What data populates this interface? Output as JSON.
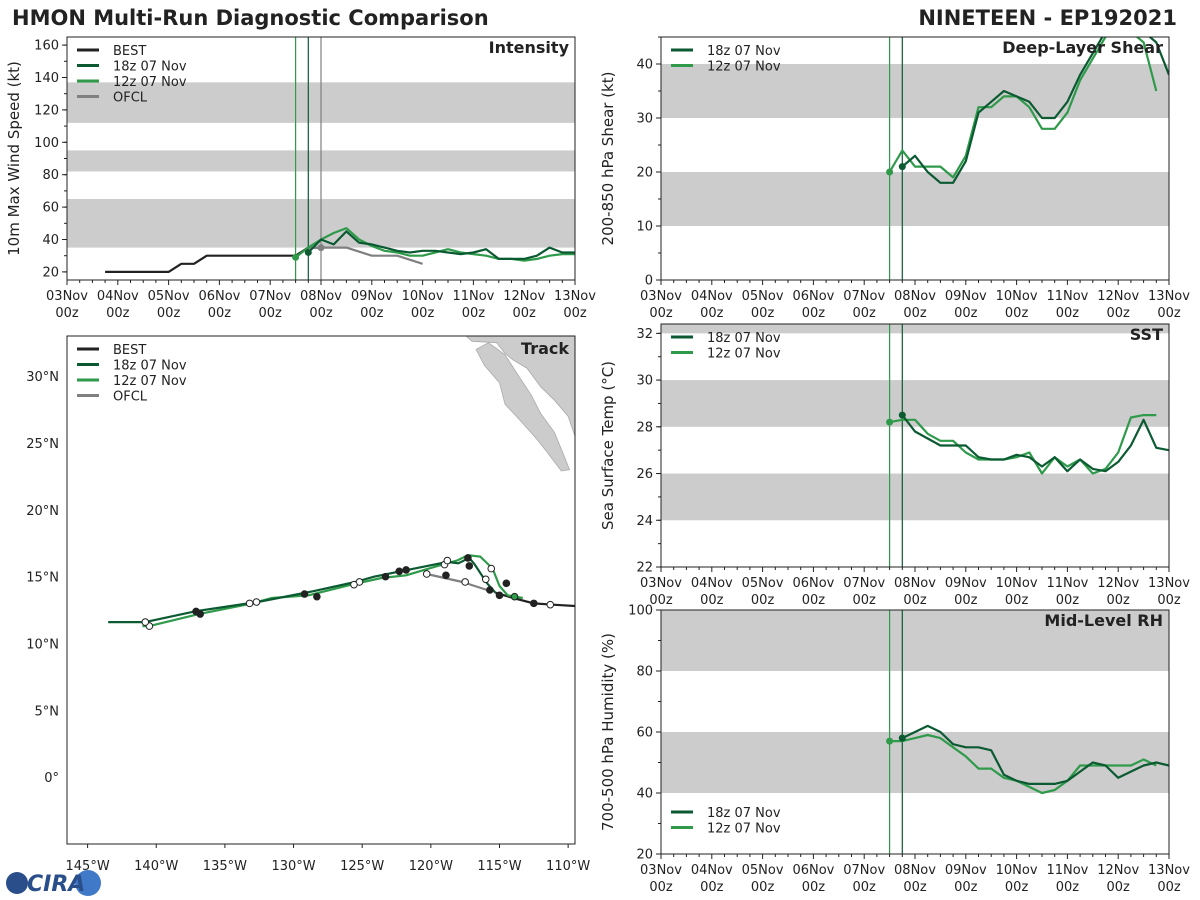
{
  "header": {
    "left_title": "HMON Multi-Run Diagnostic Comparison",
    "right_title": "NINETEEN - EP192021"
  },
  "logo_text": "CIRA",
  "colors": {
    "best": "#222222",
    "run18": "#0b5a32",
    "run12": "#2e9a4a",
    "ofcl": "#808080",
    "band": "#cccccc"
  },
  "time_ticks": [
    [
      "03Nov",
      "00z"
    ],
    [
      "04Nov",
      "00z"
    ],
    [
      "05Nov",
      "00z"
    ],
    [
      "06Nov",
      "00z"
    ],
    [
      "07Nov",
      "00z"
    ],
    [
      "08Nov",
      "00z"
    ],
    [
      "09Nov",
      "00z"
    ],
    [
      "10Nov",
      "00z"
    ],
    [
      "11Nov",
      "00z"
    ],
    [
      "12Nov",
      "00z"
    ],
    [
      "13Nov",
      "00z"
    ]
  ],
  "chart_data": [
    {
      "id": "intensity",
      "type": "line",
      "title": "Intensity",
      "ylabel": "10m Max Wind Speed (kt)",
      "xlim_days": [
        0,
        10
      ],
      "ylim": [
        15,
        165
      ],
      "yticks": [
        20,
        40,
        60,
        80,
        100,
        120,
        140,
        160
      ],
      "bands": [
        [
          35,
          65
        ],
        [
          82,
          95
        ],
        [
          112,
          137
        ]
      ],
      "vlines": [
        {
          "x": 4.5,
          "color": "run12"
        },
        {
          "x": 4.75,
          "color": "run18"
        },
        {
          "x": 5.0,
          "color": "ofcl"
        }
      ],
      "legend": [
        "BEST",
        "18z 07 Nov",
        "12z 07 Nov",
        "OFCL"
      ],
      "series": [
        {
          "name": "BEST",
          "color": "best",
          "x": [
            0.75,
            1.0,
            1.25,
            1.5,
            1.75,
            2.0,
            2.25,
            2.5,
            2.75,
            3.0,
            3.25,
            3.5,
            3.75,
            4.0,
            4.25,
            4.5,
            4.75,
            5.0
          ],
          "values": [
            20,
            20,
            20,
            20,
            20,
            20,
            25,
            25,
            30,
            30,
            30,
            30,
            30,
            30,
            30,
            30,
            35,
            35
          ]
        },
        {
          "name": "OFCL",
          "color": "ofcl",
          "x": [
            4.75,
            5.0,
            5.5,
            6.0,
            6.5,
            7.0
          ],
          "values": [
            35,
            35,
            35,
            30,
            30,
            25
          ]
        },
        {
          "name": "12z 07 Nov",
          "color": "run12",
          "x": [
            4.5,
            4.75,
            5.0,
            5.25,
            5.5,
            5.75,
            6.0,
            6.25,
            6.5,
            6.75,
            7.0,
            7.25,
            7.5,
            7.75,
            8.0,
            8.25,
            8.5,
            8.75,
            9.0,
            9.25,
            9.5,
            9.75,
            10.0
          ],
          "values": [
            29,
            35,
            40,
            44,
            47,
            40,
            36,
            33,
            32,
            30,
            30,
            32,
            34,
            32,
            31,
            30,
            28,
            28,
            27,
            28,
            30,
            31,
            31
          ]
        },
        {
          "name": "18z 07 Nov",
          "color": "run18",
          "x": [
            4.75,
            5.0,
            5.25,
            5.5,
            5.75,
            6.0,
            6.25,
            6.5,
            6.75,
            7.0,
            7.25,
            7.5,
            7.75,
            8.0,
            8.25,
            8.5,
            8.75,
            9.0,
            9.25,
            9.5,
            9.75,
            10.0
          ],
          "values": [
            32,
            40,
            37,
            45,
            38,
            37,
            35,
            33,
            32,
            33,
            33,
            32,
            31,
            32,
            34,
            28,
            28,
            28,
            30,
            35,
            32,
            32
          ]
        }
      ],
      "dots": [
        {
          "x": 4.5,
          "y": 29,
          "color": "run12"
        },
        {
          "x": 4.75,
          "y": 32,
          "color": "run18"
        },
        {
          "x": 5.0,
          "y": 35,
          "color": "ofcl"
        }
      ]
    },
    {
      "id": "shear",
      "type": "line",
      "title": "Deep-Layer Shear",
      "ylabel": "200-850 hPa Shear (kt)",
      "xlim_days": [
        0,
        10
      ],
      "ylim": [
        0,
        45
      ],
      "yticks": [
        0,
        10,
        20,
        30,
        40
      ],
      "bands": [
        [
          10,
          20
        ],
        [
          30,
          40
        ]
      ],
      "vlines": [
        {
          "x": 4.5,
          "color": "run12"
        },
        {
          "x": 4.75,
          "color": "run18"
        }
      ],
      "legend": [
        "18z 07 Nov",
        "12z 07 Nov"
      ],
      "series": [
        {
          "name": "12z 07 Nov",
          "color": "run12",
          "x": [
            4.5,
            4.75,
            5.0,
            5.25,
            5.5,
            5.75,
            6.0,
            6.25,
            6.5,
            6.75,
            7.0,
            7.25,
            7.5,
            7.75,
            8.0,
            8.25,
            8.5,
            8.75,
            9.0,
            9.25,
            9.5,
            9.75
          ],
          "values": [
            20,
            24,
            21,
            21,
            21,
            19,
            23,
            32,
            32,
            34,
            34,
            32,
            28,
            28,
            31,
            37,
            41,
            45,
            48,
            46,
            44,
            35
          ]
        },
        {
          "name": "18z 07 Nov",
          "color": "run18",
          "x": [
            4.75,
            5.0,
            5.25,
            5.5,
            5.75,
            6.0,
            6.25,
            6.5,
            6.75,
            7.0,
            7.25,
            7.5,
            7.75,
            8.0,
            8.25,
            8.5,
            8.75,
            9.0,
            9.25,
            9.5,
            9.75,
            10.0
          ],
          "values": [
            21,
            23,
            20,
            18,
            18,
            22,
            31,
            33,
            35,
            34,
            33,
            30,
            30,
            33,
            38,
            42,
            46,
            48,
            47,
            46,
            44,
            38
          ]
        }
      ],
      "dots": [
        {
          "x": 4.5,
          "y": 20,
          "color": "run12"
        },
        {
          "x": 4.75,
          "y": 21,
          "color": "run18"
        }
      ]
    },
    {
      "id": "sst",
      "type": "line",
      "title": "SST",
      "ylabel": "Sea Surface Temp (°C)",
      "xlim_days": [
        0,
        10
      ],
      "ylim": [
        22,
        32.4
      ],
      "yticks": [
        22,
        24,
        26,
        28,
        30,
        32
      ],
      "bands": [
        [
          24,
          26
        ],
        [
          28,
          30
        ],
        [
          32,
          32.4
        ]
      ],
      "vlines": [
        {
          "x": 4.5,
          "color": "run12"
        },
        {
          "x": 4.75,
          "color": "run18"
        }
      ],
      "legend": [
        "18z 07 Nov",
        "12z 07 Nov"
      ],
      "series": [
        {
          "name": "12z 07 Nov",
          "color": "run12",
          "x": [
            4.5,
            4.75,
            5.0,
            5.25,
            5.5,
            5.75,
            6.0,
            6.25,
            6.5,
            6.75,
            7.0,
            7.25,
            7.5,
            7.75,
            8.0,
            8.25,
            8.5,
            8.75,
            9.0,
            9.25,
            9.5,
            9.75
          ],
          "values": [
            28.2,
            28.3,
            28.3,
            27.7,
            27.4,
            27.4,
            26.9,
            26.6,
            26.6,
            26.6,
            26.7,
            26.9,
            26.0,
            26.7,
            26.3,
            26.6,
            26.0,
            26.2,
            26.9,
            28.4,
            28.5,
            28.5
          ]
        },
        {
          "name": "18z 07 Nov",
          "color": "run18",
          "x": [
            4.75,
            5.0,
            5.25,
            5.5,
            5.75,
            6.0,
            6.25,
            6.5,
            6.75,
            7.0,
            7.25,
            7.5,
            7.75,
            8.0,
            8.25,
            8.5,
            8.75,
            9.0,
            9.25,
            9.5,
            9.75,
            10.0
          ],
          "values": [
            28.5,
            27.8,
            27.5,
            27.2,
            27.2,
            27.2,
            26.7,
            26.6,
            26.6,
            26.8,
            26.7,
            26.3,
            26.7,
            26.1,
            26.6,
            26.2,
            26.1,
            26.5,
            27.2,
            28.3,
            27.1,
            27.0
          ]
        }
      ],
      "dots": [
        {
          "x": 4.5,
          "y": 28.2,
          "color": "run12"
        },
        {
          "x": 4.75,
          "y": 28.5,
          "color": "run18"
        }
      ]
    },
    {
      "id": "rh",
      "type": "line",
      "title": "Mid-Level RH",
      "ylabel": "700-500 hPa Humidity (%)",
      "xlim_days": [
        0,
        10
      ],
      "ylim": [
        20,
        100
      ],
      "yticks": [
        20,
        40,
        60,
        80,
        100
      ],
      "bands": [
        [
          40,
          60
        ],
        [
          80,
          100
        ]
      ],
      "vlines": [
        {
          "x": 4.5,
          "color": "run12"
        },
        {
          "x": 4.75,
          "color": "run18"
        }
      ],
      "legend": [
        "18z 07 Nov",
        "12z 07 Nov"
      ],
      "series": [
        {
          "name": "12z 07 Nov",
          "color": "run12",
          "x": [
            4.5,
            4.75,
            5.0,
            5.25,
            5.5,
            5.75,
            6.0,
            6.25,
            6.5,
            6.75,
            7.0,
            7.25,
            7.5,
            7.75,
            8.0,
            8.25,
            8.5,
            8.75,
            9.0,
            9.25,
            9.5,
            9.75
          ],
          "values": [
            57,
            57,
            58,
            59,
            58,
            55,
            52,
            48,
            48,
            45,
            44,
            42,
            40,
            41,
            44,
            49,
            49,
            49,
            49,
            49,
            51,
            49
          ]
        },
        {
          "name": "18z 07 Nov",
          "color": "run18",
          "x": [
            4.75,
            5.0,
            5.25,
            5.5,
            5.75,
            6.0,
            6.25,
            6.5,
            6.75,
            7.0,
            7.25,
            7.5,
            7.75,
            8.0,
            8.25,
            8.5,
            8.75,
            9.0,
            9.25,
            9.5,
            9.75,
            10.0
          ],
          "values": [
            58,
            60,
            62,
            60,
            56,
            55,
            55,
            54,
            46,
            44,
            43,
            43,
            43,
            44,
            47,
            50,
            49,
            45,
            47,
            49,
            50,
            49
          ]
        }
      ],
      "dots": [
        {
          "x": 4.5,
          "y": 57,
          "color": "run12"
        },
        {
          "x": 4.75,
          "y": 58,
          "color": "run18"
        }
      ]
    }
  ],
  "track_map": {
    "title": "Track",
    "lon_range": [
      -146.5,
      -109.5
    ],
    "lat_range": [
      -5,
      33
    ],
    "lon_ticks": [
      -145,
      -140,
      -135,
      -130,
      -125,
      -120,
      -115,
      -110
    ],
    "lon_labels": [
      "145°W",
      "140°W",
      "135°W",
      "130°W",
      "125°W",
      "120°W",
      "115°W",
      "110°W"
    ],
    "lat_ticks": [
      0,
      5,
      10,
      15,
      20,
      25,
      30
    ],
    "lat_labels": [
      "0°",
      "5°N",
      "10°N",
      "15°N",
      "20°N",
      "25°N",
      "30°N"
    ],
    "legend": [
      "BEST",
      "18z 07 Nov",
      "12z 07 Nov",
      "OFCL"
    ],
    "tracks": [
      {
        "name": "BEST",
        "color": "best",
        "lons": [
          -109.5,
          -111.1,
          -112.5,
          -114.0,
          -115.3
        ],
        "lats": [
          12.8,
          12.9,
          13.0,
          13.4,
          13.8
        ]
      },
      {
        "name": "OFCL",
        "color": "ofcl",
        "lons": [
          -115.9,
          -117.7,
          -120.3
        ],
        "lats": [
          14.0,
          14.6,
          15.2
        ]
      },
      {
        "name": "12z 07 Nov",
        "color": "run12",
        "lons": [
          -113.3,
          -114.4,
          -115.0,
          -115.5,
          -116.4,
          -117.3,
          -118.1,
          -119.5,
          -121.8,
          -123.6,
          -125.8,
          -128.9,
          -131.6,
          -133.0,
          -136.9,
          -140.5,
          -141.0
        ],
        "lats": [
          13.4,
          13.6,
          14.3,
          15.6,
          16.5,
          16.6,
          16.2,
          15.8,
          15.1,
          14.9,
          14.4,
          13.6,
          13.4,
          13.0,
          12.2,
          11.3,
          11.3
        ]
      },
      {
        "name": "18z 07 Nov",
        "color": "run18",
        "lons": [
          -115.3,
          -115.9,
          -116.8,
          -117.2,
          -118.0,
          -118.8,
          -121.7,
          -122.2,
          -124.1,
          -125.5,
          -128.6,
          -129.6,
          -132.6,
          -137.2,
          -140.8,
          -143.5
        ],
        "lats": [
          13.8,
          14.5,
          15.9,
          16.4,
          16.0,
          16.1,
          15.5,
          15.4,
          15.0,
          14.6,
          13.9,
          13.7,
          13.1,
          12.4,
          11.6,
          11.6
        ]
      }
    ],
    "markers": [
      {
        "lon": -112.5,
        "lat": 13.0,
        "fill": "best"
      },
      {
        "lon": -111.3,
        "lat": 12.9,
        "fill": "white"
      },
      {
        "lon": -115.0,
        "lat": 13.6,
        "fill": "best"
      },
      {
        "lon": -113.9,
        "lat": 13.5,
        "fill": "run12"
      },
      {
        "lon": -114.5,
        "lat": 14.5,
        "fill": "best"
      },
      {
        "lon": -115.7,
        "lat": 14.0,
        "fill": "best"
      },
      {
        "lon": -116.0,
        "lat": 14.8,
        "fill": "white"
      },
      {
        "lon": -115.6,
        "lat": 15.6,
        "fill": "white"
      },
      {
        "lon": -117.2,
        "lat": 15.8,
        "fill": "best"
      },
      {
        "lon": -117.3,
        "lat": 16.4,
        "fill": "best"
      },
      {
        "lon": -117.5,
        "lat": 14.6,
        "fill": "white"
      },
      {
        "lon": -118.9,
        "lat": 15.1,
        "fill": "best"
      },
      {
        "lon": -119.0,
        "lat": 15.9,
        "fill": "white"
      },
      {
        "lon": -118.8,
        "lat": 16.2,
        "fill": "white"
      },
      {
        "lon": -120.3,
        "lat": 15.2,
        "fill": "white"
      },
      {
        "lon": -121.8,
        "lat": 15.5,
        "fill": "best"
      },
      {
        "lon": -122.3,
        "lat": 15.4,
        "fill": "best"
      },
      {
        "lon": -123.3,
        "lat": 15.0,
        "fill": "best"
      },
      {
        "lon": -125.2,
        "lat": 14.6,
        "fill": "white"
      },
      {
        "lon": -125.6,
        "lat": 14.4,
        "fill": "white"
      },
      {
        "lon": -128.3,
        "lat": 13.5,
        "fill": "best"
      },
      {
        "lon": -129.2,
        "lat": 13.7,
        "fill": "best"
      },
      {
        "lon": -132.7,
        "lat": 13.1,
        "fill": "white"
      },
      {
        "lon": -133.2,
        "lat": 13.0,
        "fill": "white"
      },
      {
        "lon": -136.8,
        "lat": 12.2,
        "fill": "best"
      },
      {
        "lon": -137.1,
        "lat": 12.4,
        "fill": "best"
      },
      {
        "lon": -140.5,
        "lat": 11.3,
        "fill": "white"
      },
      {
        "lon": -140.8,
        "lat": 11.6,
        "fill": "white"
      }
    ]
  }
}
